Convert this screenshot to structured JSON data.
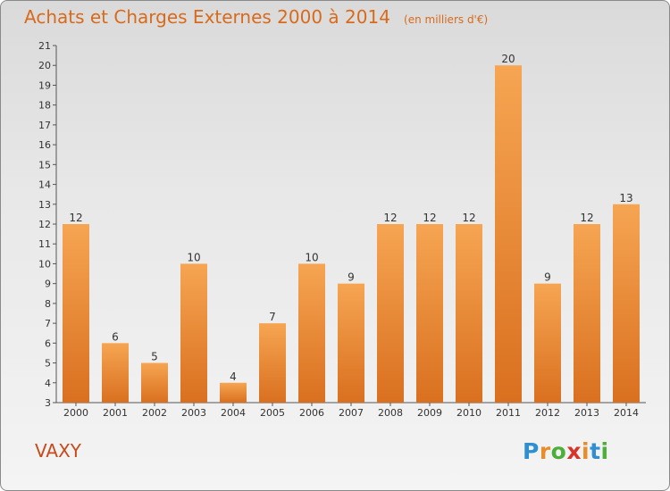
{
  "chart_data": {
    "type": "bar",
    "title": "Achats et Charges Externes 2000 à 2014",
    "unit": "(en milliers d'€)",
    "categories": [
      "2000",
      "2001",
      "2002",
      "2003",
      "2004",
      "2005",
      "2006",
      "2007",
      "2008",
      "2009",
      "2010",
      "2011",
      "2012",
      "2013",
      "2014"
    ],
    "values": [
      12,
      6,
      5,
      10,
      4,
      7,
      10,
      9,
      12,
      12,
      12,
      20,
      9,
      12,
      13
    ],
    "ylim": [
      3,
      21
    ],
    "yticks": [
      3,
      4,
      5,
      6,
      7,
      8,
      9,
      10,
      11,
      12,
      13,
      14,
      15,
      16,
      17,
      18,
      19,
      20,
      21
    ],
    "grid": false,
    "bar_color": "#f39c3c"
  },
  "footer": {
    "commune": "VAXY",
    "brand": {
      "letters": [
        "P",
        "r",
        "o",
        "x",
        "i",
        "t",
        "i"
      ],
      "colors": [
        "#2f8fd0",
        "#e98c2a",
        "#4caf3a",
        "#d7332a",
        "#e98c2a",
        "#2f8fd0",
        "#4caf3a"
      ]
    }
  }
}
